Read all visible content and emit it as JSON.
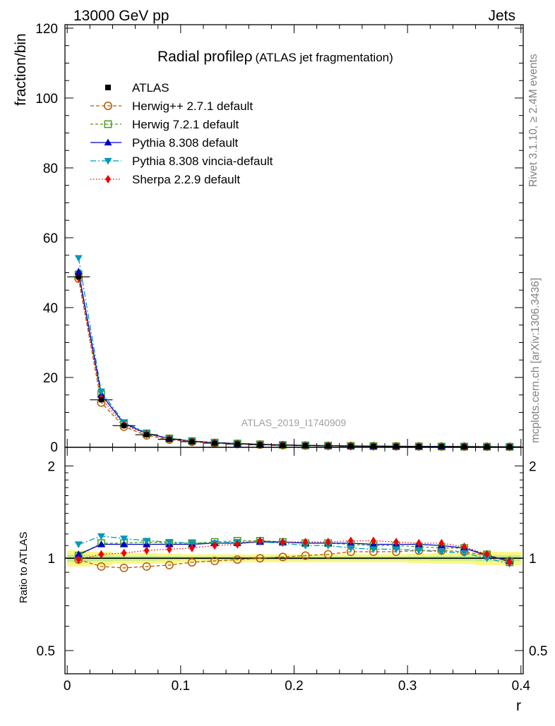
{
  "header": {
    "left": "13000 GeV pp",
    "right": "Jets"
  },
  "side": {
    "rivet": "Rivet 3.1.10, ≥ 2.4M events",
    "mcplots": "mcplots.cern.ch [arXiv:1306.3436]"
  },
  "chart_data": {
    "type": "scatter",
    "title": "Radial profileρ (ATLAS jet fragmentation)",
    "title_main": "Radial profileρ",
    "title_sub": "(ATLAS jet fragmentation)",
    "watermark": "ATLAS_2019_I1740909",
    "xlabel": "r",
    "ylabel": "fraction/bin",
    "ratio_ylabel": "Ratio to ATLAS",
    "xlim": [
      -0.002,
      0.402
    ],
    "ylim": [
      0,
      121
    ],
    "ratio_ylim": [
      0.42,
      2.3
    ],
    "ratio_log_scale": true,
    "x_ticks": [
      0,
      0.1,
      0.2,
      0.3,
      0.4
    ],
    "x_tick_labels": [
      "0",
      "0.1",
      "0.2",
      "0.3",
      "0.4"
    ],
    "y_ticks": [
      0,
      20,
      40,
      60,
      80,
      100,
      120
    ],
    "y_tick_labels": [
      "0",
      "20",
      "40",
      "60",
      "80",
      "100",
      "120"
    ],
    "ratio_ticks": [
      0.5,
      1,
      2
    ],
    "ratio_tick_labels": [
      "0.5",
      "1",
      "2"
    ],
    "legend_position": "top-left",
    "x": [
      0.01,
      0.03,
      0.05,
      0.07,
      0.09,
      0.11,
      0.13,
      0.15,
      0.17,
      0.19,
      0.21,
      0.23,
      0.25,
      0.27,
      0.29,
      0.31,
      0.33,
      0.35,
      0.37,
      0.39
    ],
    "data": {
      "name": "ATLAS",
      "values": [
        48.8,
        13.6,
        6.2,
        3.6,
        2.3,
        1.6,
        1.2,
        0.95,
        0.75,
        0.6,
        0.5,
        0.42,
        0.36,
        0.31,
        0.27,
        0.24,
        0.21,
        0.19,
        0.17,
        0.15
      ],
      "ratio_band": [
        0.06,
        0.05,
        0.04,
        0.04,
        0.035,
        0.03,
        0.03,
        0.03,
        0.03,
        0.03,
        0.03,
        0.03,
        0.03,
        0.03,
        0.03,
        0.035,
        0.04,
        0.04,
        0.05,
        0.05
      ]
    },
    "series": [
      {
        "name": "Herwig++ 2.7.1 default",
        "color": "#b35a00",
        "dash": "5,3",
        "marker": "circle-open",
        "values": [
          48.3,
          12.8,
          5.9,
          3.42,
          2.2,
          1.56,
          1.18,
          0.94,
          0.75,
          0.61,
          0.51,
          0.432,
          0.378,
          0.326,
          0.284,
          0.254,
          0.222,
          0.2,
          0.174,
          0.147
        ],
        "ratio": [
          0.99,
          0.94,
          0.93,
          0.94,
          0.95,
          0.97,
          0.98,
          0.99,
          1.0,
          1.01,
          1.02,
          1.03,
          1.05,
          1.05,
          1.05,
          1.06,
          1.06,
          1.05,
          1.02,
          0.98
        ]
      },
      {
        "name": "Herwig 7.2.1 default",
        "color": "#4a9a1a",
        "dash": "4,3",
        "marker": "square-open",
        "values": [
          49.5,
          15.2,
          6.9,
          4.0,
          2.55,
          1.79,
          1.35,
          1.09,
          0.86,
          0.68,
          0.56,
          0.47,
          0.4,
          0.34,
          0.296,
          0.26,
          0.225,
          0.205,
          0.175,
          0.145
        ],
        "ratio": [
          1.02,
          1.12,
          1.12,
          1.13,
          1.12,
          1.12,
          1.13,
          1.14,
          1.14,
          1.13,
          1.12,
          1.12,
          1.11,
          1.1,
          1.1,
          1.09,
          1.08,
          1.08,
          1.03,
          0.97
        ]
      },
      {
        "name": "Pythia 8.308 default",
        "color": "#0000cc",
        "dash": "",
        "marker": "triangle-up",
        "values": [
          50.3,
          15.1,
          6.85,
          3.96,
          2.53,
          1.77,
          1.35,
          1.07,
          0.85,
          0.68,
          0.56,
          0.47,
          0.4,
          0.34,
          0.297,
          0.264,
          0.23,
          0.206,
          0.173,
          0.147
        ],
        "ratio": [
          1.03,
          1.11,
          1.11,
          1.11,
          1.11,
          1.11,
          1.12,
          1.12,
          1.13,
          1.13,
          1.12,
          1.12,
          1.12,
          1.11,
          1.11,
          1.11,
          1.1,
          1.08,
          1.02,
          0.98
        ]
      },
      {
        "name": "Pythia 8.308 vincia-default",
        "color": "#0099bb",
        "dash": "8,3,2,3",
        "marker": "triangle-down",
        "values": [
          54.2,
          16.0,
          7.2,
          4.1,
          2.59,
          1.8,
          1.35,
          1.08,
          0.86,
          0.68,
          0.55,
          0.46,
          0.39,
          0.33,
          0.29,
          0.256,
          0.22,
          0.198,
          0.17,
          0.144
        ],
        "ratio": [
          1.11,
          1.18,
          1.16,
          1.14,
          1.13,
          1.12,
          1.12,
          1.13,
          1.13,
          1.12,
          1.1,
          1.1,
          1.08,
          1.07,
          1.07,
          1.06,
          1.05,
          1.04,
          1.0,
          0.96
        ]
      },
      {
        "name": "Sherpa 2.2.9 default",
        "color": "#ee0000",
        "dash": "1.5,2.5",
        "marker": "diamond",
        "values": [
          48.5,
          14.0,
          6.4,
          3.8,
          2.46,
          1.73,
          1.32,
          1.06,
          0.86,
          0.68,
          0.56,
          0.47,
          0.41,
          0.35,
          0.305,
          0.27,
          0.235,
          0.207,
          0.175,
          0.146
        ],
        "ratio": [
          0.99,
          1.03,
          1.04,
          1.06,
          1.07,
          1.08,
          1.1,
          1.11,
          1.14,
          1.13,
          1.13,
          1.13,
          1.14,
          1.14,
          1.13,
          1.12,
          1.12,
          1.09,
          1.03,
          0.97
        ]
      }
    ]
  }
}
